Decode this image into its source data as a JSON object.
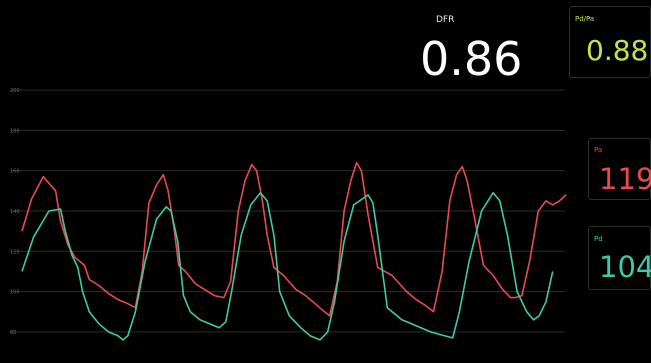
{
  "colors": {
    "background": "#000000",
    "grid": "#2b2b2b",
    "tick": "#6a6a6a",
    "pa": "#e84b4b",
    "pd": "#3fc9a6",
    "pdpa": "#c8e04a",
    "dfr": "#ffffff"
  },
  "metrics": {
    "dfr": {
      "label": "DFR",
      "value": "0.86"
    },
    "pdpa": {
      "label": "Pd/Pa",
      "value": "0.88"
    },
    "pa": {
      "label": "Pa",
      "value": "119"
    },
    "pd": {
      "label": "Pd",
      "value": "104"
    }
  },
  "chart_data": {
    "type": "line",
    "ylim": [
      72,
      205
    ],
    "xlim": [
      0,
      570
    ],
    "yticks": [
      80,
      100,
      120,
      140,
      160,
      180,
      200
    ],
    "ytick_labels": [
      "80",
      "100",
      "120",
      "140",
      "160",
      "180",
      "200"
    ],
    "grid": true,
    "series": [
      {
        "name": "Pa",
        "color": "#e84b4b",
        "x": [
          0,
          10,
          22,
          35,
          40,
          48,
          55,
          60,
          65,
          70,
          80,
          90,
          100,
          110,
          118,
          125,
          132,
          140,
          147,
          152,
          158,
          163,
          170,
          180,
          190,
          200,
          210,
          217,
          225,
          232,
          239,
          244,
          250,
          255,
          262,
          272,
          285,
          295,
          305,
          312,
          320,
          328,
          335,
          342,
          348,
          353,
          360,
          370,
          385,
          400,
          410,
          420,
          428,
          437,
          445,
          452,
          458,
          463,
          470,
          480,
          490,
          500,
          508,
          513,
          520,
          528,
          537,
          545,
          552,
          559,
          566
        ],
        "y": [
          130,
          146,
          157,
          150,
          135,
          123,
          117,
          115,
          113,
          106,
          103,
          99,
          96,
          94,
          92,
          110,
          144,
          153,
          158,
          150,
          132,
          113,
          110,
          104,
          101,
          98,
          97,
          105,
          140,
          155,
          163,
          160,
          145,
          128,
          112,
          108,
          101,
          98,
          94,
          91,
          88,
          105,
          140,
          155,
          164,
          160,
          138,
          112,
          108,
          100,
          96,
          93,
          90,
          110,
          145,
          158,
          162,
          155,
          138,
          113,
          108,
          101,
          97,
          97,
          98,
          115,
          140,
          145,
          143,
          145,
          148
        ]
      },
      {
        "name": "Pd",
        "color": "#3fc9a6",
        "x": [
          0,
          12,
          28,
          40,
          45,
          52,
          58,
          63,
          70,
          80,
          90,
          100,
          105,
          110,
          118,
          128,
          140,
          150,
          155,
          162,
          168,
          175,
          185,
          195,
          205,
          212,
          218,
          228,
          238,
          248,
          255,
          262,
          268,
          278,
          290,
          300,
          310,
          318,
          325,
          335,
          345,
          360,
          365,
          370,
          380,
          395,
          410,
          425,
          440,
          448,
          455,
          465,
          478,
          490,
          497,
          505,
          515,
          525,
          532,
          538,
          545,
          552
        ],
        "y": [
          110,
          127,
          140,
          141,
          130,
          118,
          112,
          100,
          90,
          84,
          80,
          78,
          76,
          78,
          90,
          115,
          136,
          142,
          140,
          125,
          98,
          90,
          86,
          84,
          82,
          85,
          100,
          128,
          143,
          149,
          145,
          128,
          100,
          88,
          82,
          78,
          76,
          80,
          95,
          125,
          143,
          148,
          144,
          128,
          92,
          86,
          83,
          80,
          78,
          77,
          90,
          115,
          140,
          149,
          145,
          128,
          100,
          90,
          86,
          88,
          95,
          110
        ]
      }
    ]
  }
}
